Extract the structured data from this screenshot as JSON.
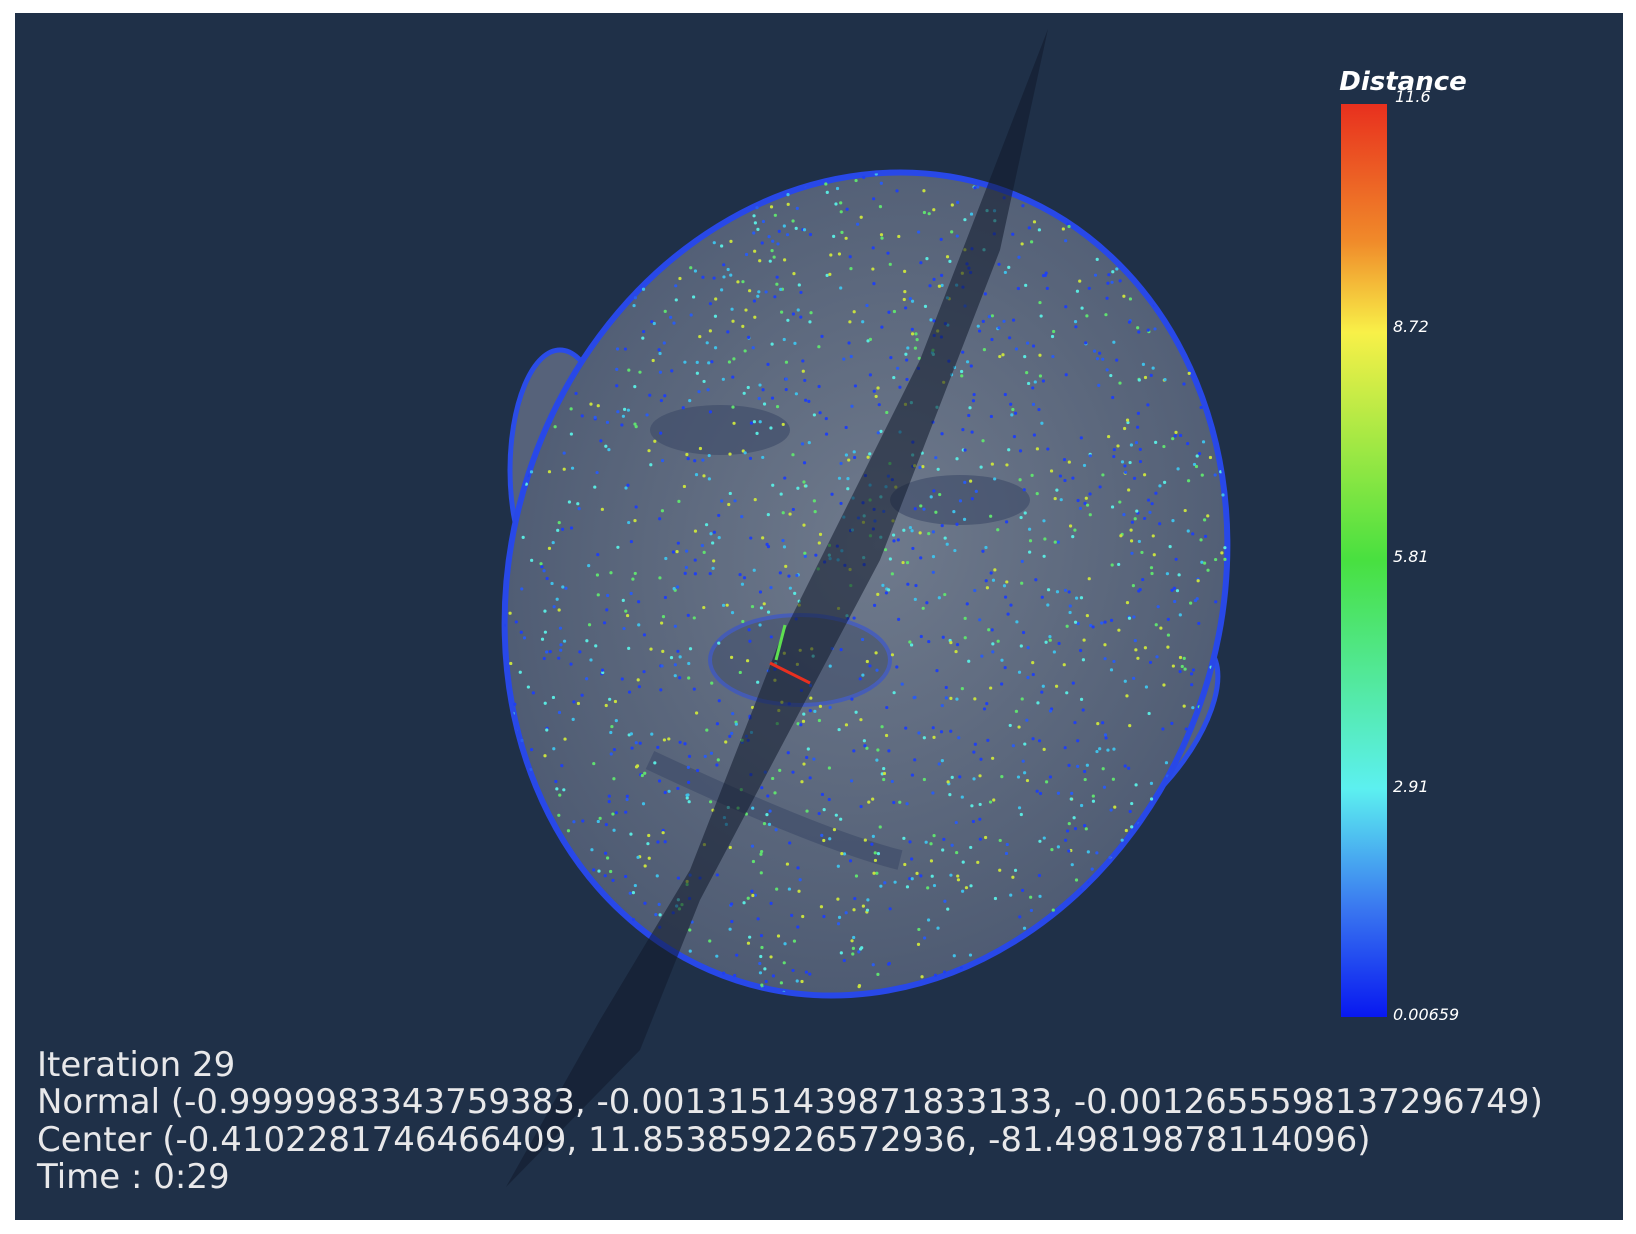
{
  "viewport": {
    "colorbar": {
      "title": "Distance",
      "labels": [
        "11.6",
        "8.72",
        "5.81",
        "2.91",
        "0.00659"
      ]
    },
    "overlay": {
      "iteration": "Iteration 29",
      "normal": "Normal (-0.9999983343759383, -0.0013151439871833133, -0.0012655598137296749)",
      "center": "Center (-0.4102281746466409, 11.853859226572936, -81.49819878114096)",
      "time": "Time : 0:29"
    }
  }
}
